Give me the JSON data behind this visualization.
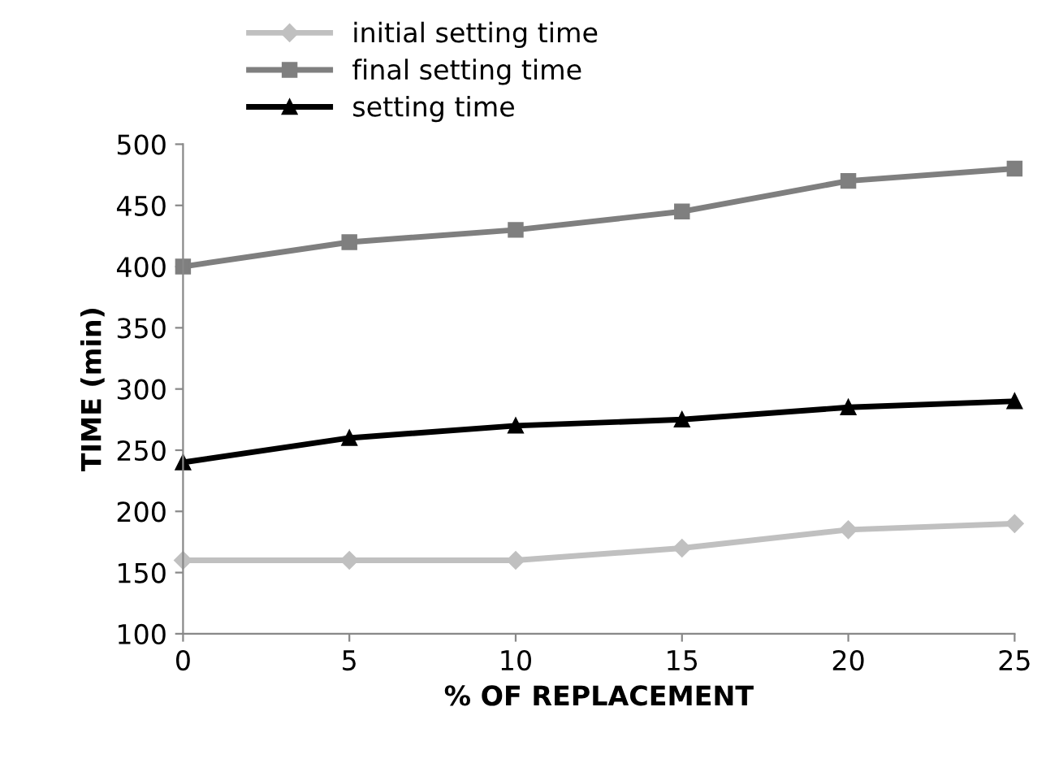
{
  "chart_data": {
    "type": "line",
    "xlabel": "% OF REPLACEMENT",
    "ylabel": "TIME (min)",
    "x": [
      0,
      5,
      10,
      15,
      20,
      25
    ],
    "series": [
      {
        "name": "initial setting time",
        "color": "#c0c0c0",
        "marker": "diamond",
        "values": [
          160,
          160,
          160,
          170,
          185,
          190
        ]
      },
      {
        "name": "final setting time",
        "color": "#7f7f7f",
        "marker": "square",
        "values": [
          400,
          420,
          430,
          445,
          470,
          480
        ]
      },
      {
        "name": "setting time",
        "color": "#000000",
        "marker": "triangle",
        "values": [
          240,
          260,
          270,
          275,
          285,
          290
        ]
      }
    ],
    "xlim": [
      0,
      25
    ],
    "xticks": [
      0,
      5,
      10,
      15,
      20,
      25
    ],
    "ylim": [
      100,
      500
    ],
    "yticks": [
      100,
      150,
      200,
      250,
      300,
      350,
      400,
      450,
      500
    ],
    "grid": false,
    "legend": "top left",
    "line_style": "solid"
  }
}
